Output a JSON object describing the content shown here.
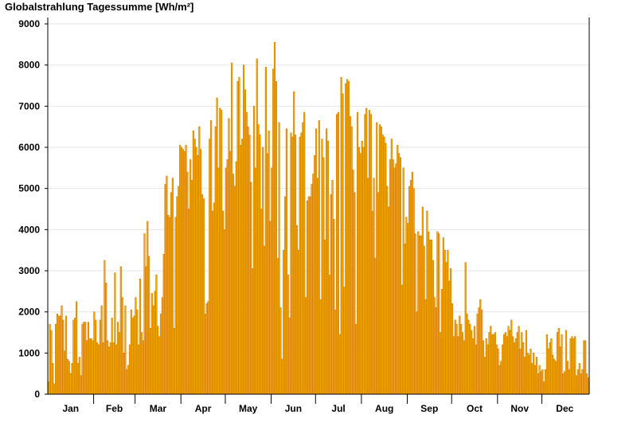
{
  "chart_data": {
    "type": "bar",
    "title": "Globalstrahlung Tagessumme [Wh/m²]",
    "xlabel": "",
    "ylabel": "",
    "ylim": [
      0,
      9000
    ],
    "yticks": [
      0,
      1000,
      2000,
      3000,
      4000,
      5000,
      6000,
      7000,
      8000,
      9000
    ],
    "grid": true,
    "month_labels": [
      "Jan",
      "Feb",
      "Mar",
      "Apr",
      "May",
      "Jun",
      "Jul",
      "Aug",
      "Sep",
      "Oct",
      "Nov",
      "Dec"
    ],
    "series": [
      {
        "values": [
          300,
          1700,
          1550,
          750,
          250,
          1700,
          1950,
          1900,
          1900,
          2150,
          1800,
          1050,
          1900,
          850,
          800,
          500,
          750,
          1800,
          1850,
          2250,
          750,
          900,
          450,
          1700,
          1750,
          1750,
          1300,
          1750,
          1350,
          1350,
          1300,
          2000,
          1800,
          1250,
          1200,
          1800,
          2150,
          1250,
          3250,
          2700,
          1300,
          1150,
          1250,
          1850,
          1250,
          2950,
          1200,
          1750,
          1500,
          3100,
          2350,
          1000,
          2150,
          600,
          700,
          1200,
          2050,
          1850,
          1900,
          2350,
          2050,
          1200,
          2800,
          1500,
          1300,
          3900,
          3100,
          4200,
          3350,
          1600,
          2450,
          2150,
          2500,
          2900,
          1650,
          1400,
          1950,
          2350,
          3400,
          5100,
          5300,
          4350,
          4300,
          4900,
          5250,
          1600,
          4300,
          4800,
          5050,
          6050,
          6000,
          5950,
          5900,
          6050,
          5400,
          4500,
          5700,
          5200,
          6400,
          6200,
          6000,
          5800,
          6500,
          5950,
          4850,
          4750,
          1950,
          2200,
          2250,
          6200,
          6650,
          4450,
          4650,
          6500,
          7200,
          5500,
          6950,
          6900,
          4450,
          4000,
          5500,
          5700,
          6700,
          5900,
          8050,
          5350,
          5050,
          5650,
          7600,
          7700,
          6050,
          6200,
          8000,
          7400,
          6850,
          6500,
          6300,
          5150,
          3050,
          7000,
          5500,
          8150,
          6550,
          6300,
          4500,
          6000,
          3600,
          7950,
          5850,
          6400,
          4200,
          5500,
          7900,
          8550,
          7600,
          3300,
          6600,
          2100,
          850,
          3500,
          4800,
          6450,
          2900,
          1850,
          6350,
          6250,
          7350,
          6300,
          4100,
          3500,
          6250,
          6350,
          6600,
          6850,
          2350,
          4700,
          4800,
          4800,
          5100,
          5350,
          5800,
          6450,
          5250,
          6650,
          2300,
          6200,
          5750,
          3750,
          6450,
          6150,
          2900,
          4850,
          5200,
          4250,
          2050,
          6800,
          6850,
          1450,
          7700,
          7300,
          2600,
          7550,
          7650,
          7600,
          6750,
          6500,
          5450,
          4900,
          1700,
          6850,
          6000,
          5850,
          6150,
          6000,
          6800,
          6950,
          5250,
          6900,
          6800,
          4450,
          5250,
          3300,
          6600,
          4900,
          6550,
          6500,
          6300,
          6250,
          6100,
          5050,
          4550,
          5700,
          6200,
          5700,
          5500,
          5600,
          6050,
          5850,
          5750,
          2650,
          5500,
          3650,
          4300,
          4150,
          5050,
          5200,
          5400,
          5000,
          3900,
          2000,
          3950,
          3850,
          3850,
          4550,
          3600,
          2300,
          4450,
          3950,
          3750,
          3750,
          3250,
          2350,
          2100,
          3950,
          3900,
          1500,
          2550,
          3800,
          3500,
          3200,
          3500,
          2750,
          3050,
          2200,
          1400,
          1800,
          1700,
          1400,
          1900,
          1700,
          1500,
          1300,
          3200,
          1950,
          1800,
          1700,
          1550,
          1350,
          1650,
          1200,
          1950,
          2100,
          2300,
          2050,
          1300,
          900,
          1350,
          1200,
          1500,
          1650,
          1450,
          1450,
          1500,
          1200,
          1100,
          700,
          800,
          1200,
          1450,
          1500,
          1400,
          1650,
          1550,
          1800,
          1400,
          1250,
          1350,
          1500,
          1650,
          1100,
          1500,
          1250,
          900,
          1550,
          1000,
          950,
          1100,
          750,
          1000,
          700,
          900,
          500,
          700,
          550,
          600,
          300,
          600,
          1450,
          1100,
          1250,
          1350,
          950,
          850,
          800,
          1500,
          1600,
          1150,
          1450,
          500,
          550,
          1550,
          800,
          600,
          1350,
          1400,
          1350,
          1400,
          450,
          600,
          750,
          500,
          600,
          1300,
          1300,
          500,
          400
        ]
      }
    ]
  }
}
